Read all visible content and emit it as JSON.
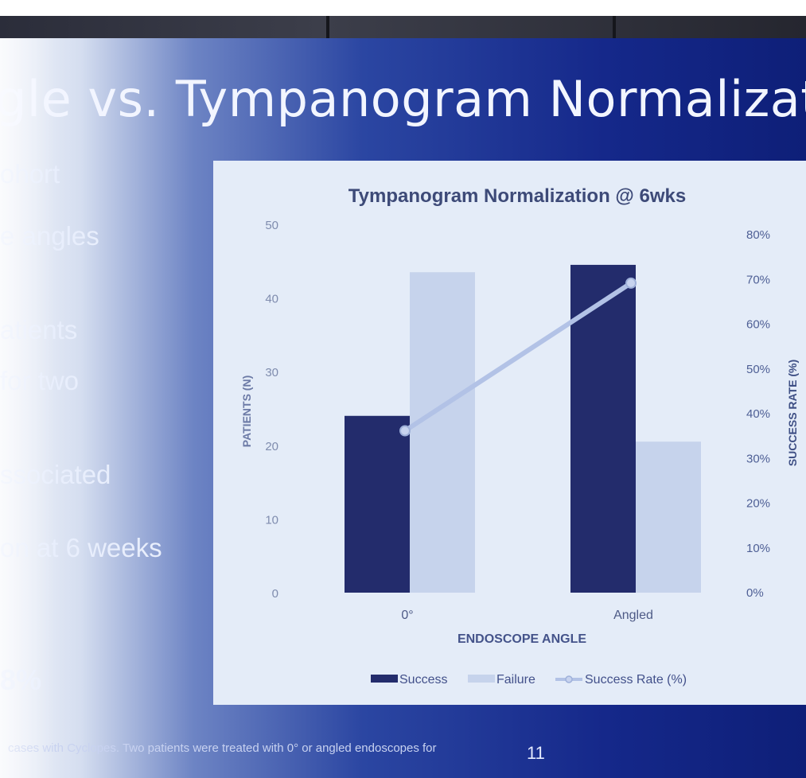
{
  "slide": {
    "title": "gle vs. Tympanogram Normalization",
    "bullets": [
      "ohort",
      "e angles",
      "atients",
      "for two",
      "ssociated",
      "on at 6 weeks"
    ],
    "percent_text": "8%",
    "footnote": "cases with Cyclopes. Two patients were treated with 0° or angled endoscopes for",
    "slide_number": "11"
  },
  "chart_data": {
    "type": "bar",
    "title": "Tympanogram Normalization @ 6wks",
    "categories": [
      "0°",
      "Angled"
    ],
    "series": [
      {
        "name": "Success",
        "kind": "bar",
        "axis": "left",
        "values": [
          24,
          44.5
        ],
        "color": "#232c6c"
      },
      {
        "name": "Failure",
        "kind": "bar",
        "axis": "left",
        "values": [
          43.5,
          20.5
        ],
        "color": "#c6d3ec"
      },
      {
        "name": "Success Rate (%)",
        "kind": "line",
        "axis": "right",
        "values": [
          36,
          69
        ],
        "color": "#b2c2e6"
      }
    ],
    "xlabel": "ENDOSCOPE ANGLE",
    "ylabel": "PATIENTS (N)",
    "y2label": "SUCCESS RATE (%)",
    "ylim": [
      0,
      50
    ],
    "y2lim": [
      0,
      80
    ],
    "yticks": [
      "0",
      "10",
      "20",
      "30",
      "40",
      "50"
    ],
    "y2ticks": [
      "0%",
      "10%",
      "20%",
      "30%",
      "40%",
      "50%",
      "60%",
      "70%",
      "80%"
    ],
    "legend_position": "bottom",
    "grid": false
  }
}
